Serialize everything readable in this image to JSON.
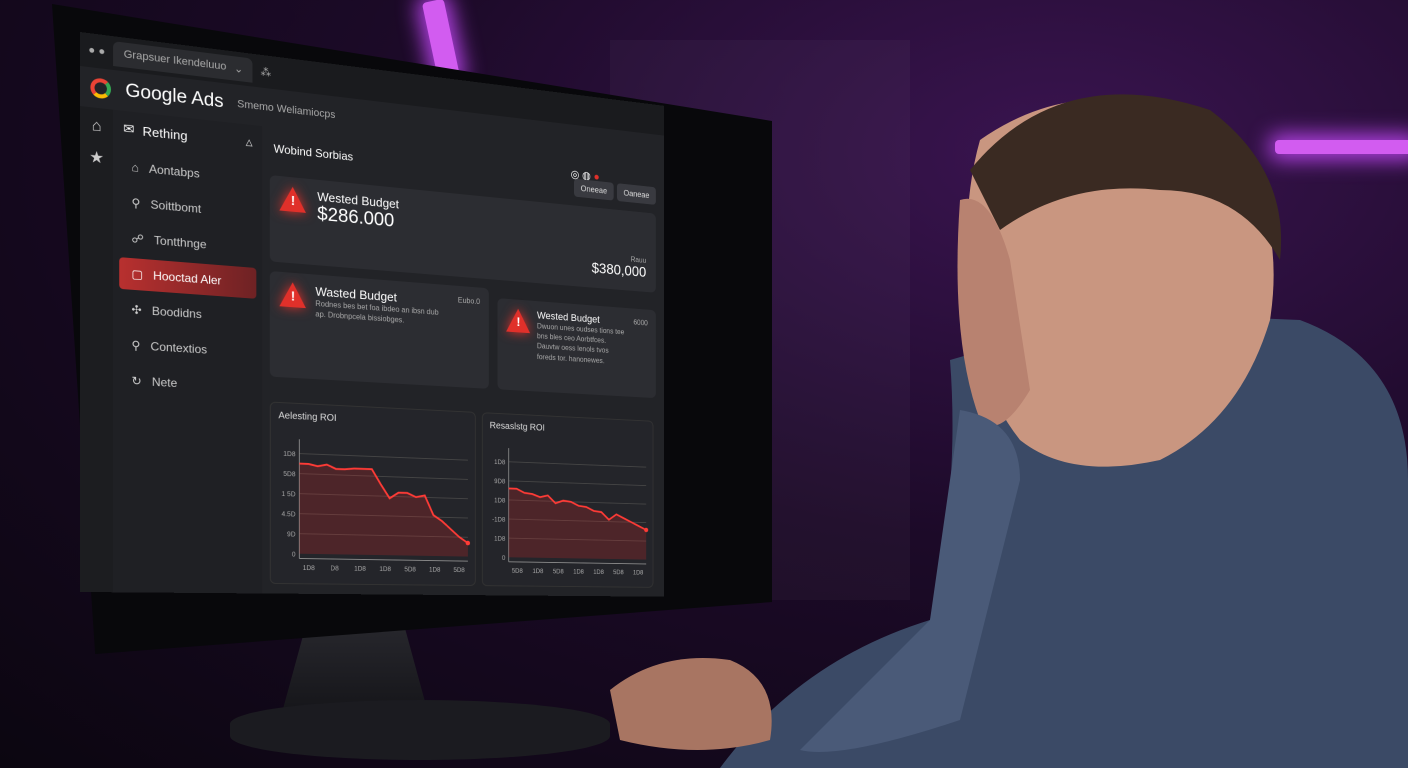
{
  "browser": {
    "tab_label": "Grapsuer Ikendeluuo"
  },
  "header": {
    "title": "Google Ads",
    "subtitle": "Smemo Weliamiocps"
  },
  "sidebar": {
    "head": "Rething",
    "items": [
      {
        "label": "Aontabps",
        "icon": "home-icon"
      },
      {
        "label": "Soittbomt",
        "icon": "search-icon"
      },
      {
        "label": "Tontthnge",
        "icon": "group-icon"
      },
      {
        "label": "Hooctad Aler",
        "icon": "square-icon",
        "active": true
      },
      {
        "label": "Boodidns",
        "icon": "puzzle-icon"
      },
      {
        "label": "Contextios",
        "icon": "search-icon"
      },
      {
        "label": "Nete",
        "icon": "refresh-icon"
      }
    ]
  },
  "main": {
    "title": "Wobind Sorbias",
    "buttons": [
      "Oneeae",
      "Oaneae"
    ],
    "cards": [
      {
        "title": "Wested Budget",
        "amount": "$286.000",
        "side_label": "Rauu",
        "side_amount": "$380,000"
      },
      {
        "title": "Wasted Budget",
        "badge": "Eubo.0",
        "text": "Rodnes bes bet foa ibdeo an ibsn dub ap. Drobnpcela bissiobges."
      },
      {
        "title": "Wested Budget",
        "badge": "6000",
        "text": "Dwuon unes oudses tions tee bns bles ceo Aorbtfces.",
        "text2": "Dauvtw oess lenols tvos foreds tor. hanonewes."
      }
    ]
  },
  "colors": {
    "accent": "#e0302a",
    "background": "#1c0a28",
    "neon": "#d25cf0"
  },
  "chart_data": [
    {
      "type": "area",
      "title": "Aelesting ROI",
      "yticks": [
        "1D8",
        "5D8",
        "1 5D",
        "4.5D",
        "9D",
        "0"
      ],
      "xticks": [
        "1D8",
        "D8",
        "1D8",
        "1D8",
        "5D8",
        "1D8",
        "5D8"
      ],
      "values": [
        4.5,
        4.5,
        4.4,
        4.5,
        4.3,
        4.3,
        4.35,
        4.35,
        4.35,
        3.6,
        2.9,
        3.2,
        3.2,
        3.0,
        3.1,
        2.1,
        1.8,
        1.4,
        1.0,
        0.7
      ]
    },
    {
      "type": "area",
      "title": "Resaslstg ROI",
      "yticks": [
        "1D8",
        "9D8",
        "1D8",
        "-1D8",
        "1D8",
        "0"
      ],
      "xticks": [
        "5D8",
        "1D8",
        "5D8",
        "1D8",
        "1D8",
        "5D8",
        "1D8"
      ],
      "values": [
        3.6,
        3.6,
        3.4,
        3.35,
        3.2,
        3.3,
        2.9,
        3.05,
        3.0,
        2.8,
        2.75,
        2.55,
        2.5,
        2.1,
        2.4,
        2.2,
        2.0,
        1.8,
        1.6
      ]
    }
  ]
}
